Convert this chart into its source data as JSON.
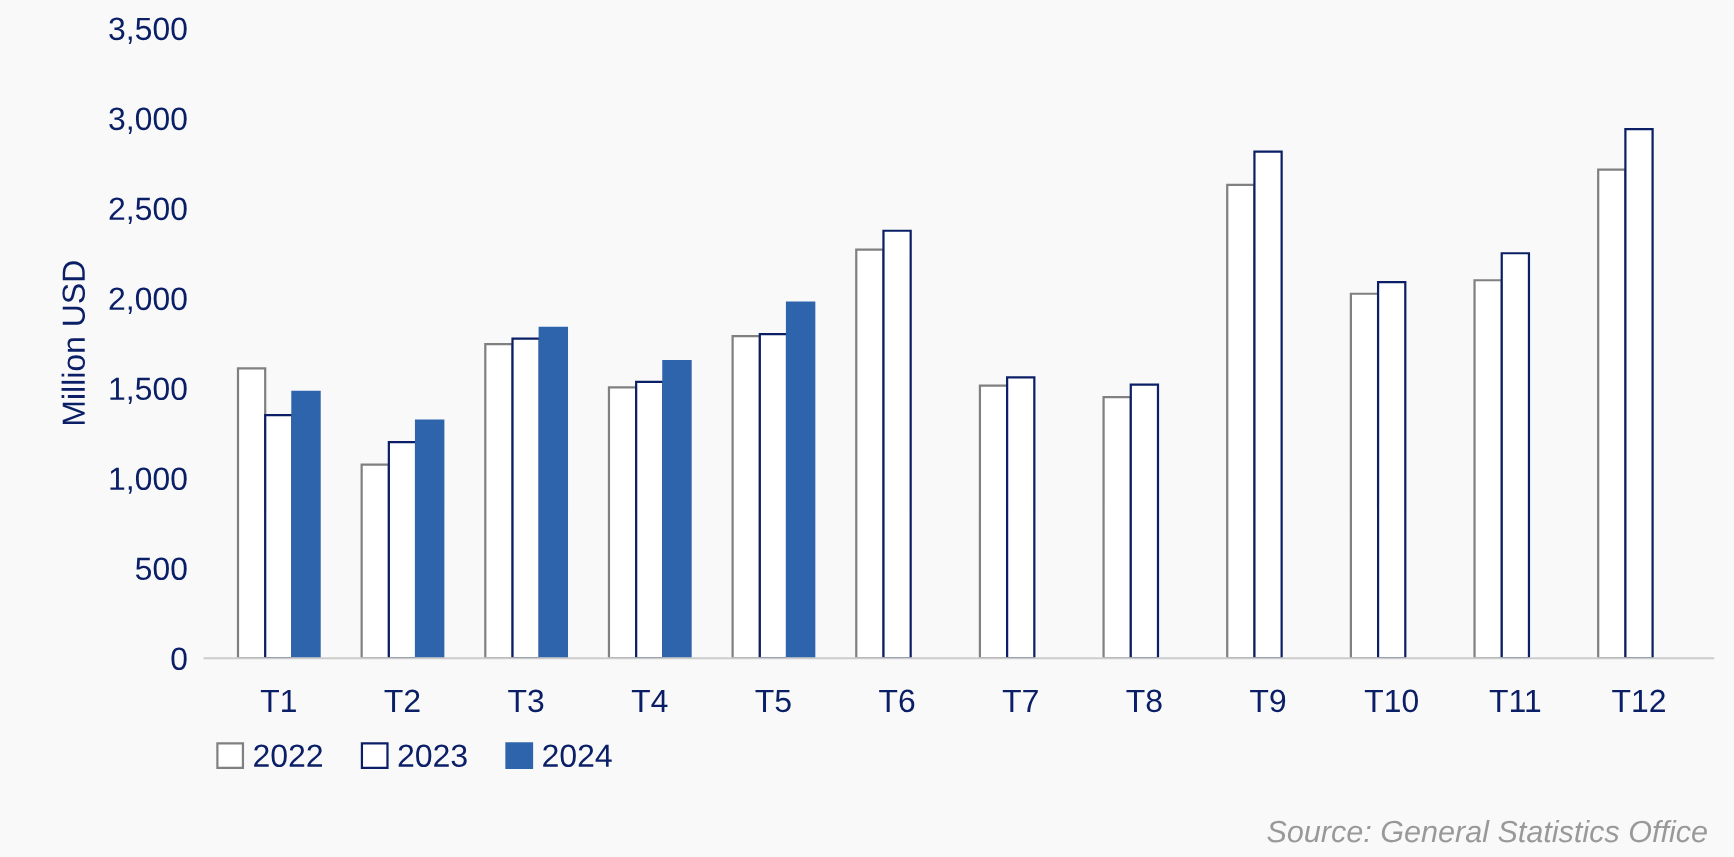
{
  "chart_data": {
    "type": "bar",
    "ylabel": "Million USD",
    "categories": [
      "T1",
      "T2",
      "T3",
      "T4",
      "T5",
      "T6",
      "T7",
      "T8",
      "T9",
      "T10",
      "T11",
      "T12"
    ],
    "series": [
      {
        "name": "2022",
        "color": "#808080",
        "values": [
          1610,
          1075,
          1745,
          1505,
          1790,
          2270,
          1515,
          1450,
          2630,
          2025,
          2100,
          2715
        ]
      },
      {
        "name": "2023",
        "color": "#0b1f66",
        "values": [
          1350,
          1200,
          1775,
          1535,
          1800,
          2375,
          1560,
          1520,
          2815,
          2090,
          2250,
          2940
        ]
      },
      {
        "name": "2024",
        "color": "#2e64ab",
        "values": [
          1480,
          1320,
          1835,
          1650,
          1975,
          null,
          null,
          null,
          null,
          null,
          null,
          null
        ]
      }
    ],
    "ylim": [
      0,
      3500
    ],
    "yticks": [
      {
        "value": 0,
        "label": "0"
      },
      {
        "value": 500,
        "label": "500"
      },
      {
        "value": 1000,
        "label": "1,000"
      },
      {
        "value": 1500,
        "label": "1,500"
      },
      {
        "value": 2000,
        "label": "2,000"
      },
      {
        "value": 2500,
        "label": "2,500"
      },
      {
        "value": 3000,
        "label": "3,000"
      },
      {
        "value": 3500,
        "label": "3,500"
      }
    ],
    "grid": false,
    "legend": "bottom left",
    "annotations": [
      "Source: General Statistics Office"
    ]
  }
}
